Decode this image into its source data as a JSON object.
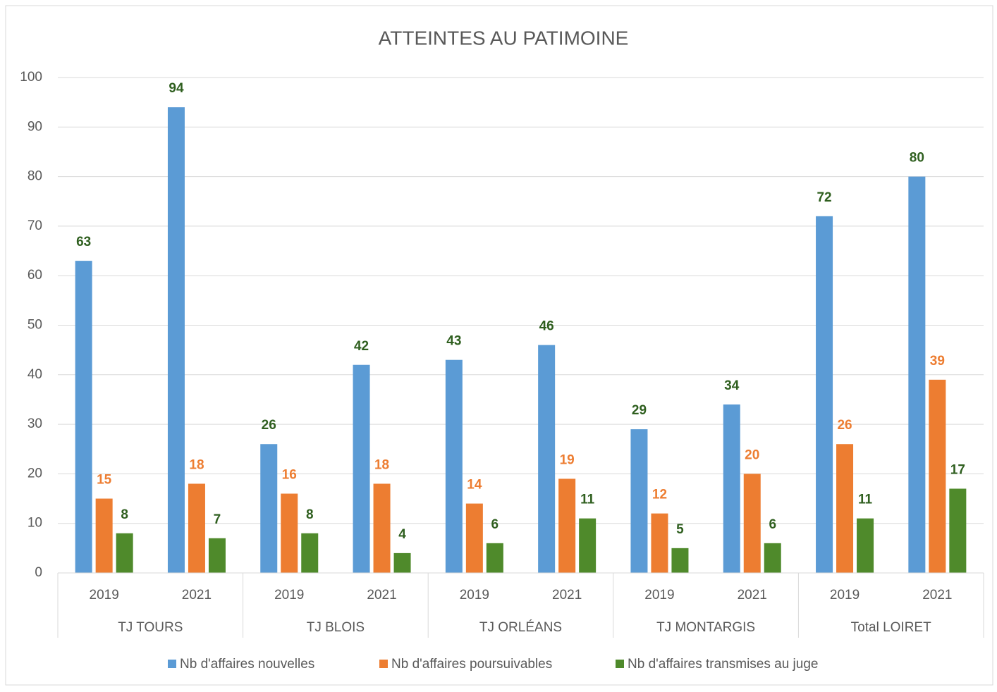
{
  "chart_data": {
    "type": "bar",
    "title": "ATTEINTES AU PATIMOINE",
    "categories": [
      "2019",
      "2021",
      "2019",
      "2021",
      "2019",
      "2021",
      "2019",
      "2021",
      "2019",
      "2021"
    ],
    "category_groups": [
      "TJ TOURS",
      "TJ BLOIS",
      "TJ ORLÉANS",
      "TJ MONTARGIS",
      "Total LOIRET"
    ],
    "series": [
      {
        "name": "Nb d'affaires nouvelles",
        "color": "#5b9bd5",
        "label_color": "#2f5f1f",
        "values": [
          63,
          94,
          26,
          42,
          43,
          46,
          29,
          34,
          72,
          80
        ]
      },
      {
        "name": "Nb d'affaires poursuivables",
        "color": "#ed7d31",
        "label_color": "#ed7d31",
        "values": [
          15,
          18,
          16,
          18,
          14,
          19,
          12,
          20,
          26,
          39
        ]
      },
      {
        "name": "Nb d'affaires transmises au juge",
        "color": "#4f8a2b",
        "label_color": "#2f5f1f",
        "values": [
          8,
          7,
          8,
          4,
          6,
          11,
          5,
          6,
          11,
          17
        ]
      }
    ],
    "ylim": [
      0,
      100
    ],
    "yticks": [
      0,
      10,
      20,
      30,
      40,
      50,
      60,
      70,
      80,
      90,
      100
    ],
    "grid": true,
    "legend": "bottom"
  }
}
